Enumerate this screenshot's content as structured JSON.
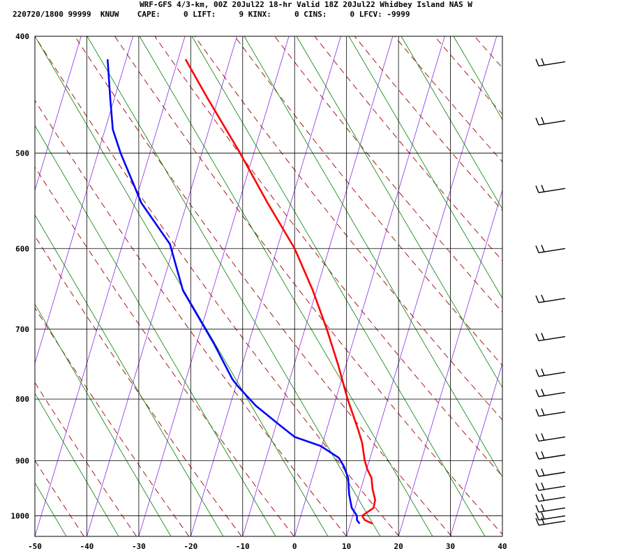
{
  "header": {
    "line1": "WRF-GFS 4/3-km, 00Z 20Jul22 18-hr Valid 18Z 20Jul22 Whidbey Island NAS W",
    "line2": "220720/1800 99999  KNUW    CAPE:     0 LIFT:     9 KINX:     0 CINS:     0 LFCV: -9999"
  },
  "colors": {
    "temperature": "#ff0000",
    "dewpoint": "#0000ff",
    "dry_adiabat": "#a00000",
    "moist_adiabat": "#008000",
    "isotherm_skew": "#8a2be2",
    "grid": "#000000"
  },
  "chart_data": {
    "type": "line",
    "subtype": "skew-t log-p",
    "x_ticks": [
      -50,
      -40,
      -30,
      -20,
      -10,
      0,
      10,
      20,
      30,
      40
    ],
    "xlim": [
      -50,
      40
    ],
    "y_ticks": [
      400,
      500,
      600,
      700,
      800,
      900,
      1000
    ],
    "ylim_pressure": [
      1040,
      400
    ],
    "y_scale": "log",
    "series": [
      {
        "key": "temperature",
        "points": [
          [
            1015,
            15.0
          ],
          [
            1008,
            13.5
          ],
          [
            1000,
            13.0
          ],
          [
            993,
            14.0
          ],
          [
            985,
            15.2
          ],
          [
            970,
            15.5
          ],
          [
            950,
            15.0
          ],
          [
            930,
            14.8
          ],
          [
            915,
            14.0
          ],
          [
            900,
            13.5
          ],
          [
            870,
            13.0
          ],
          [
            850,
            12.3
          ],
          [
            800,
            10.2
          ],
          [
            750,
            8.4
          ],
          [
            700,
            6.2
          ],
          [
            650,
            3.5
          ],
          [
            600,
            0.0
          ],
          [
            550,
            -5.2
          ],
          [
            500,
            -10.5
          ],
          [
            450,
            -16.8
          ],
          [
            418,
            -21.0
          ]
        ]
      },
      {
        "key": "dewpoint",
        "points": [
          [
            1015,
            12.5
          ],
          [
            1008,
            12.0
          ],
          [
            1000,
            12.0
          ],
          [
            985,
            11.0
          ],
          [
            960,
            10.5
          ],
          [
            930,
            10.3
          ],
          [
            910,
            9.5
          ],
          [
            895,
            8.5
          ],
          [
            875,
            5.0
          ],
          [
            860,
            0.0
          ],
          [
            840,
            -3.0
          ],
          [
            810,
            -7.5
          ],
          [
            780,
            -11.0
          ],
          [
            770,
            -12.0
          ],
          [
            720,
            -15.5
          ],
          [
            650,
            -21.5
          ],
          [
            595,
            -24.0
          ],
          [
            550,
            -29.5
          ],
          [
            500,
            -33.5
          ],
          [
            478,
            -35.0
          ],
          [
            450,
            -35.5
          ],
          [
            418,
            -36.0
          ]
        ]
      }
    ],
    "wind_barbs": [
      {
        "p": 420
      },
      {
        "p": 470
      },
      {
        "p": 535
      },
      {
        "p": 600
      },
      {
        "p": 660
      },
      {
        "p": 710
      },
      {
        "p": 760
      },
      {
        "p": 790
      },
      {
        "p": 820
      },
      {
        "p": 860
      },
      {
        "p": 890
      },
      {
        "p": 920
      },
      {
        "p": 945
      },
      {
        "p": 965
      },
      {
        "p": 985
      },
      {
        "p": 1000
      },
      {
        "p": 1010
      }
    ]
  }
}
